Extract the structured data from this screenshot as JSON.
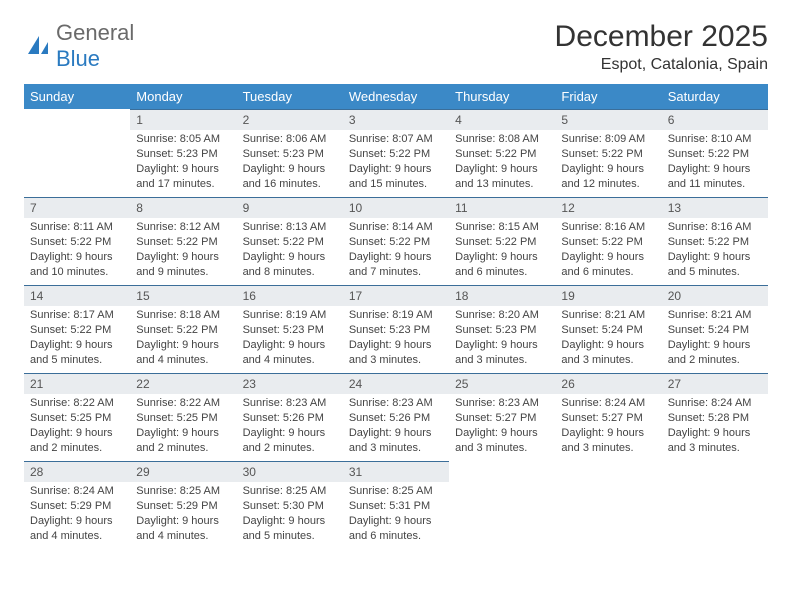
{
  "logo": {
    "general": "General",
    "blue": "Blue"
  },
  "title": "December 2025",
  "location": "Espot, Catalonia, Spain",
  "headers": [
    "Sunday",
    "Monday",
    "Tuesday",
    "Wednesday",
    "Thursday",
    "Friday",
    "Saturday"
  ],
  "header_bg": "#3b89c7",
  "daynum_bg": "#e9ecef",
  "daynum_border": "#3b6e99",
  "weeks": [
    [
      null,
      {
        "n": "1",
        "sr": "8:05 AM",
        "ss": "5:23 PM",
        "dl": "9 hours and 17 minutes."
      },
      {
        "n": "2",
        "sr": "8:06 AM",
        "ss": "5:23 PM",
        "dl": "9 hours and 16 minutes."
      },
      {
        "n": "3",
        "sr": "8:07 AM",
        "ss": "5:22 PM",
        "dl": "9 hours and 15 minutes."
      },
      {
        "n": "4",
        "sr": "8:08 AM",
        "ss": "5:22 PM",
        "dl": "9 hours and 13 minutes."
      },
      {
        "n": "5",
        "sr": "8:09 AM",
        "ss": "5:22 PM",
        "dl": "9 hours and 12 minutes."
      },
      {
        "n": "6",
        "sr": "8:10 AM",
        "ss": "5:22 PM",
        "dl": "9 hours and 11 minutes."
      }
    ],
    [
      {
        "n": "7",
        "sr": "8:11 AM",
        "ss": "5:22 PM",
        "dl": "9 hours and 10 minutes."
      },
      {
        "n": "8",
        "sr": "8:12 AM",
        "ss": "5:22 PM",
        "dl": "9 hours and 9 minutes."
      },
      {
        "n": "9",
        "sr": "8:13 AM",
        "ss": "5:22 PM",
        "dl": "9 hours and 8 minutes."
      },
      {
        "n": "10",
        "sr": "8:14 AM",
        "ss": "5:22 PM",
        "dl": "9 hours and 7 minutes."
      },
      {
        "n": "11",
        "sr": "8:15 AM",
        "ss": "5:22 PM",
        "dl": "9 hours and 6 minutes."
      },
      {
        "n": "12",
        "sr": "8:16 AM",
        "ss": "5:22 PM",
        "dl": "9 hours and 6 minutes."
      },
      {
        "n": "13",
        "sr": "8:16 AM",
        "ss": "5:22 PM",
        "dl": "9 hours and 5 minutes."
      }
    ],
    [
      {
        "n": "14",
        "sr": "8:17 AM",
        "ss": "5:22 PM",
        "dl": "9 hours and 5 minutes."
      },
      {
        "n": "15",
        "sr": "8:18 AM",
        "ss": "5:22 PM",
        "dl": "9 hours and 4 minutes."
      },
      {
        "n": "16",
        "sr": "8:19 AM",
        "ss": "5:23 PM",
        "dl": "9 hours and 4 minutes."
      },
      {
        "n": "17",
        "sr": "8:19 AM",
        "ss": "5:23 PM",
        "dl": "9 hours and 3 minutes."
      },
      {
        "n": "18",
        "sr": "8:20 AM",
        "ss": "5:23 PM",
        "dl": "9 hours and 3 minutes."
      },
      {
        "n": "19",
        "sr": "8:21 AM",
        "ss": "5:24 PM",
        "dl": "9 hours and 3 minutes."
      },
      {
        "n": "20",
        "sr": "8:21 AM",
        "ss": "5:24 PM",
        "dl": "9 hours and 2 minutes."
      }
    ],
    [
      {
        "n": "21",
        "sr": "8:22 AM",
        "ss": "5:25 PM",
        "dl": "9 hours and 2 minutes."
      },
      {
        "n": "22",
        "sr": "8:22 AM",
        "ss": "5:25 PM",
        "dl": "9 hours and 2 minutes."
      },
      {
        "n": "23",
        "sr": "8:23 AM",
        "ss": "5:26 PM",
        "dl": "9 hours and 2 minutes."
      },
      {
        "n": "24",
        "sr": "8:23 AM",
        "ss": "5:26 PM",
        "dl": "9 hours and 3 minutes."
      },
      {
        "n": "25",
        "sr": "8:23 AM",
        "ss": "5:27 PM",
        "dl": "9 hours and 3 minutes."
      },
      {
        "n": "26",
        "sr": "8:24 AM",
        "ss": "5:27 PM",
        "dl": "9 hours and 3 minutes."
      },
      {
        "n": "27",
        "sr": "8:24 AM",
        "ss": "5:28 PM",
        "dl": "9 hours and 3 minutes."
      }
    ],
    [
      {
        "n": "28",
        "sr": "8:24 AM",
        "ss": "5:29 PM",
        "dl": "9 hours and 4 minutes."
      },
      {
        "n": "29",
        "sr": "8:25 AM",
        "ss": "5:29 PM",
        "dl": "9 hours and 4 minutes."
      },
      {
        "n": "30",
        "sr": "8:25 AM",
        "ss": "5:30 PM",
        "dl": "9 hours and 5 minutes."
      },
      {
        "n": "31",
        "sr": "8:25 AM",
        "ss": "5:31 PM",
        "dl": "9 hours and 6 minutes."
      },
      null,
      null,
      null
    ]
  ],
  "labels": {
    "sunrise": "Sunrise:",
    "sunset": "Sunset:",
    "daylight": "Daylight:"
  }
}
